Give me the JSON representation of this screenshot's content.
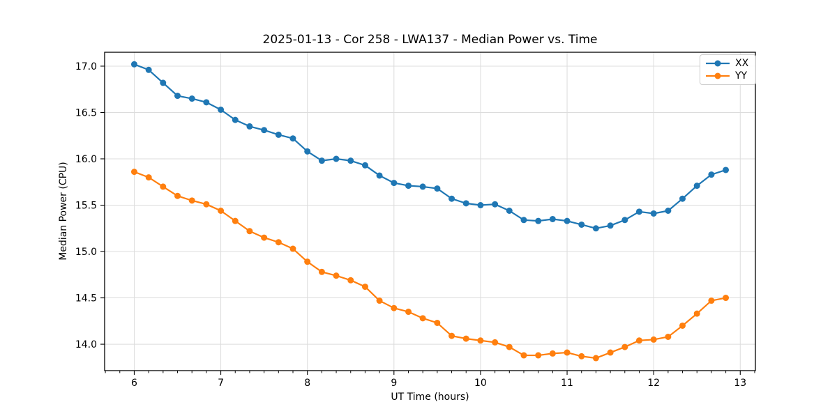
{
  "chart_data": {
    "type": "line",
    "title": "2025-01-13 - Cor 258 - LWA137 - Median Power vs. Time",
    "xlabel": "UT Time (hours)",
    "ylabel": "Median Power (CPU)",
    "xlim": [
      5.658,
      13.175
    ],
    "ylim": [
      13.715,
      17.15
    ],
    "xticks": [
      6,
      7,
      8,
      9,
      10,
      11,
      12,
      13
    ],
    "yticks": [
      14.0,
      14.5,
      15.0,
      15.5,
      16.0,
      16.5,
      17.0
    ],
    "x_minor_step": 0.1666667,
    "grid": true,
    "legend_position": "upper right",
    "x": [
      6.0,
      6.167,
      6.333,
      6.5,
      6.667,
      6.833,
      7.0,
      7.167,
      7.333,
      7.5,
      7.667,
      7.833,
      8.0,
      8.167,
      8.333,
      8.5,
      8.667,
      8.833,
      9.0,
      9.167,
      9.333,
      9.5,
      9.667,
      9.833,
      10.0,
      10.167,
      10.333,
      10.5,
      10.667,
      10.833,
      11.0,
      11.167,
      11.333,
      11.5,
      11.667,
      11.833,
      12.0,
      12.167,
      12.333,
      12.5,
      12.667,
      12.833
    ],
    "series": [
      {
        "name": "XX",
        "color": "#1f77b4",
        "values": [
          17.02,
          16.96,
          16.82,
          16.68,
          16.65,
          16.61,
          16.53,
          16.42,
          16.35,
          16.31,
          16.26,
          16.22,
          16.08,
          15.98,
          16.0,
          15.98,
          15.93,
          15.82,
          15.74,
          15.71,
          15.7,
          15.68,
          15.57,
          15.52,
          15.5,
          15.51,
          15.44,
          15.34,
          15.33,
          15.35,
          15.33,
          15.29,
          15.25,
          15.28,
          15.34,
          15.43,
          15.41,
          15.44,
          15.57,
          15.71,
          15.83,
          15.88
        ]
      },
      {
        "name": "YY",
        "color": "#ff7f0e",
        "values": [
          15.86,
          15.8,
          15.7,
          15.6,
          15.55,
          15.51,
          15.44,
          15.33,
          15.22,
          15.15,
          15.1,
          15.03,
          14.89,
          14.78,
          14.74,
          14.69,
          14.62,
          14.47,
          14.39,
          14.35,
          14.28,
          14.23,
          14.09,
          14.06,
          14.04,
          14.02,
          13.97,
          13.88,
          13.88,
          13.9,
          13.91,
          13.87,
          13.85,
          13.91,
          13.97,
          14.04,
          14.05,
          14.08,
          14.2,
          14.33,
          14.47,
          14.5
        ]
      }
    ],
    "styles": {
      "grid_color": "#dcdcdc",
      "spine_color": "#000000",
      "tick_color": "#000000",
      "marker_radius": 4.5,
      "line_width": 2.2
    }
  }
}
